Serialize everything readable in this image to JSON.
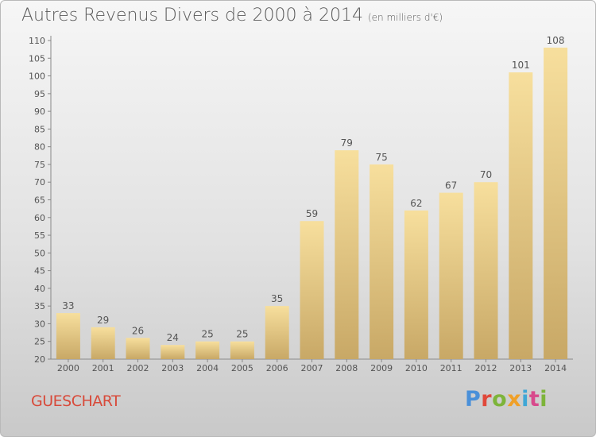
{
  "title": "Autres Revenus Divers de 2000 à 2014",
  "subtitle": "(en milliers d'€)",
  "place": "GUESCHART",
  "brand": {
    "letters": [
      "P",
      "r",
      "o",
      "x",
      "i",
      "t",
      "i"
    ],
    "colors": [
      "#4a90d9",
      "#e0483a",
      "#7db43a",
      "#f0a028",
      "#3fa7d6",
      "#d84a8c",
      "#7db43a"
    ]
  },
  "colors": {
    "bar_light": "#f7df9d",
    "bar_dark": "#c8a866",
    "label": "#555555",
    "place": "#d84a3a"
  },
  "chart_data": {
    "type": "bar",
    "title": "Autres Revenus Divers de 2000 à 2014",
    "subtitle": "(en milliers d'€)",
    "categories": [
      "2000",
      "2001",
      "2002",
      "2003",
      "2004",
      "2005",
      "2006",
      "2007",
      "2008",
      "2009",
      "2010",
      "2011",
      "2012",
      "2013",
      "2014"
    ],
    "values": [
      33,
      29,
      26,
      24,
      25,
      25,
      35,
      59,
      79,
      75,
      62,
      67,
      70,
      101,
      108
    ],
    "ylim": [
      20,
      110
    ],
    "yticks": [
      20,
      25,
      30,
      35,
      40,
      45,
      50,
      55,
      60,
      65,
      70,
      75,
      80,
      85,
      90,
      95,
      100,
      105,
      110
    ],
    "xlabel": "",
    "ylabel": "",
    "grid": false,
    "data_labels": true
  }
}
